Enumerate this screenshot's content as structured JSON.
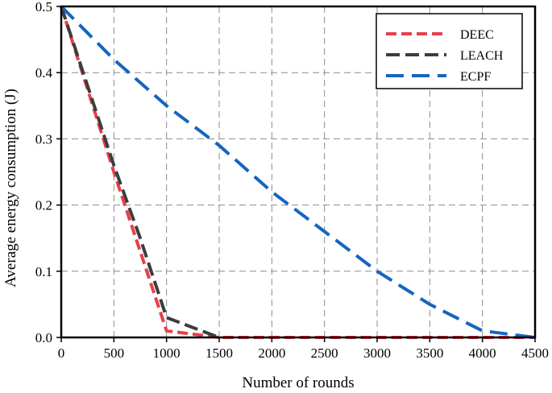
{
  "chart_data": {
    "type": "line",
    "xlabel": "Number of rounds",
    "ylabel": "Average energy consumption (J)",
    "xlim": [
      0,
      4500
    ],
    "ylim": [
      0,
      0.5
    ],
    "xticks": [
      "0",
      "500",
      "1000",
      "1500",
      "2000",
      "2500",
      "3000",
      "3500",
      "4000",
      "4500"
    ],
    "yticks": [
      "0.0",
      "0.1",
      "0.2",
      "0.3",
      "0.4",
      "0.5"
    ],
    "grid": true,
    "legend_position": "top-right",
    "series": [
      {
        "name": "DEEC",
        "color": "#e8404a",
        "x": [
          0,
          250,
          500,
          750,
          1000,
          1250,
          1500,
          2000,
          2500,
          3000,
          3500,
          4000,
          4500
        ],
        "y": [
          0.5,
          0.375,
          0.25,
          0.13,
          0.01,
          0.005,
          0.0,
          0.0,
          0.0,
          0.0,
          0.0,
          0.0,
          0.0
        ]
      },
      {
        "name": "LEACH",
        "color": "#3d3d3d",
        "x": [
          0,
          250,
          500,
          750,
          1000,
          1250,
          1500
        ],
        "y": [
          0.5,
          0.38,
          0.26,
          0.15,
          0.03,
          0.015,
          0.0
        ]
      },
      {
        "name": "ECPF",
        "color": "#1565c0",
        "x": [
          0,
          500,
          1000,
          1500,
          2000,
          2500,
          3000,
          3500,
          4000,
          4500
        ],
        "y": [
          0.5,
          0.42,
          0.35,
          0.29,
          0.22,
          0.16,
          0.1,
          0.05,
          0.01,
          0.0
        ]
      }
    ]
  }
}
